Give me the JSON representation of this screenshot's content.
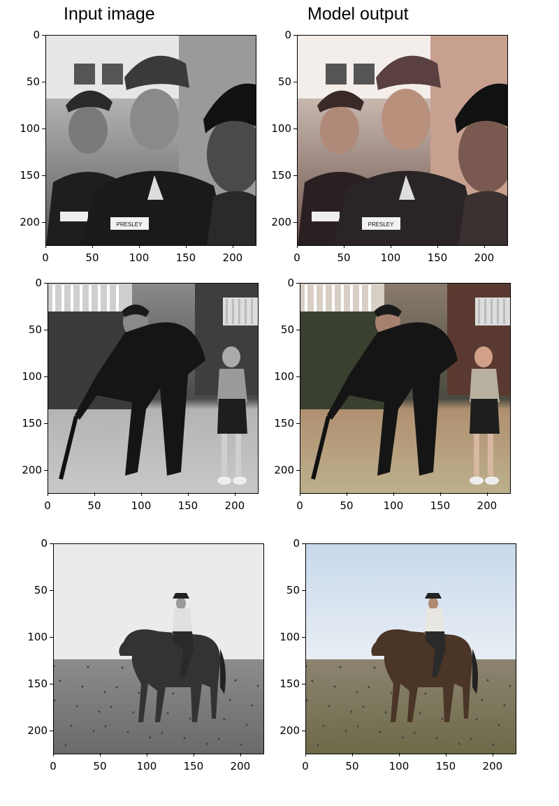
{
  "titles": {
    "input": "Input image",
    "output": "Model output"
  },
  "rows": [
    {
      "subject": "soldiers",
      "name_tag": "PRESLEY"
    },
    {
      "subject": "man-and-boy-in-garden"
    },
    {
      "subject": "rider-on-horse"
    }
  ],
  "axis": {
    "y_ticks": [
      "0",
      "50",
      "100",
      "150",
      "200"
    ],
    "x_ticks": [
      "0",
      "50",
      "100",
      "150",
      "200"
    ],
    "range": [
      0,
      224
    ]
  },
  "colors": {
    "axis": "#000000",
    "background": "#ffffff"
  }
}
